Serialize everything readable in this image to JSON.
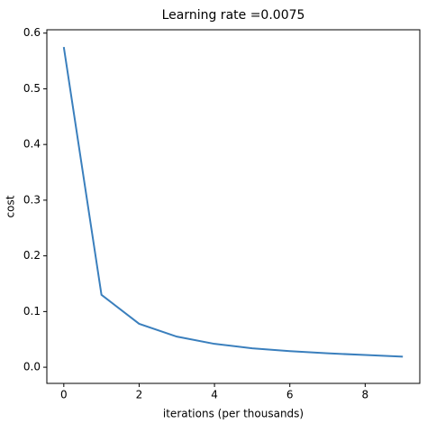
{
  "chart_data": {
    "type": "line",
    "title": "Learning rate =0.0075",
    "x_label": "iterations (per thousands)",
    "y_label": "cost",
    "x": [
      0,
      1,
      2,
      3,
      4,
      5,
      6,
      7,
      8,
      9
    ],
    "series": [
      {
        "color": "#3a7fbd",
        "values": [
          0.575,
          0.13,
          0.078,
          0.055,
          0.042,
          0.034,
          0.029,
          0.025,
          0.022,
          0.019
        ]
      }
    ],
    "xlim": [
      -0.45,
      9.45
    ],
    "ylim": [
      -0.029,
      0.606
    ],
    "xticks": [
      0,
      2,
      4,
      6,
      8
    ],
    "yticks": [
      {
        "value": 0,
        "label": "0.0"
      },
      0.1,
      0.2,
      0.3,
      0.4,
      0.5,
      0.6
    ]
  }
}
